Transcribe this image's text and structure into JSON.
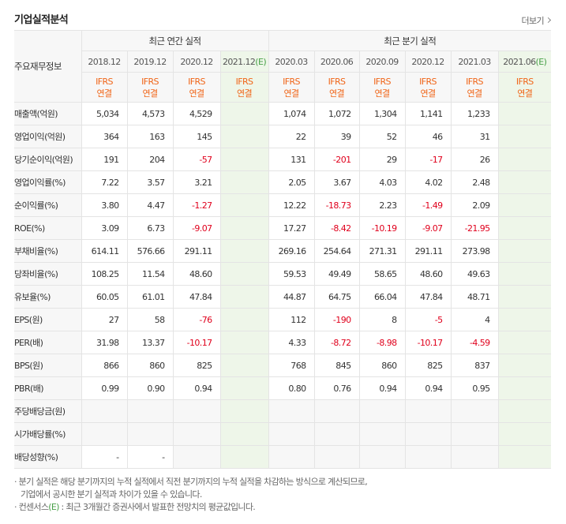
{
  "header": {
    "title": "기업실적분석",
    "more_label": "더보기"
  },
  "table": {
    "corner_label": "주요재무정보",
    "group_annual": "최근 연간 실적",
    "group_quarter": "최근 분기 실적",
    "annual_periods": [
      "2018.12",
      "2019.12",
      "2020.12",
      "2021.12"
    ],
    "quarter_periods": [
      "2020.03",
      "2020.06",
      "2020.09",
      "2020.12",
      "2021.03",
      "2021.06"
    ],
    "estimate_mark": "(E)",
    "ifrs_top": "IFRS",
    "ifrs_bottom": "연결",
    "rows": [
      {
        "label": "매출액(억원)",
        "annual": [
          "5,034",
          "4,573",
          "4,529",
          ""
        ],
        "quarter": [
          "1,074",
          "1,072",
          "1,304",
          "1,141",
          "1,233",
          ""
        ]
      },
      {
        "label": "영업이익(억원)",
        "annual": [
          "364",
          "163",
          "145",
          ""
        ],
        "quarter": [
          "22",
          "39",
          "52",
          "46",
          "31",
          ""
        ]
      },
      {
        "label": "당기순이익(억원)",
        "annual": [
          "191",
          "204",
          "-57",
          ""
        ],
        "quarter": [
          "131",
          "-201",
          "29",
          "-17",
          "26",
          ""
        ]
      },
      {
        "label": "영업이익률(%)",
        "annual": [
          "7.22",
          "3.57",
          "3.21",
          ""
        ],
        "quarter": [
          "2.05",
          "3.67",
          "4.03",
          "4.02",
          "2.48",
          ""
        ]
      },
      {
        "label": "순이익률(%)",
        "annual": [
          "3.80",
          "4.47",
          "-1.27",
          ""
        ],
        "quarter": [
          "12.22",
          "-18.73",
          "2.23",
          "-1.49",
          "2.09",
          ""
        ]
      },
      {
        "label": "ROE(%)",
        "annual": [
          "3.09",
          "6.73",
          "-9.07",
          ""
        ],
        "quarter": [
          "17.27",
          "-8.42",
          "-10.19",
          "-9.07",
          "-21.95",
          ""
        ]
      },
      {
        "label": "부채비율(%)",
        "annual": [
          "614.11",
          "576.66",
          "291.11",
          ""
        ],
        "quarter": [
          "269.16",
          "254.64",
          "271.31",
          "291.11",
          "273.98",
          ""
        ]
      },
      {
        "label": "당좌비율(%)",
        "annual": [
          "108.25",
          "11.54",
          "48.60",
          ""
        ],
        "quarter": [
          "59.53",
          "49.49",
          "58.65",
          "48.60",
          "49.63",
          ""
        ]
      },
      {
        "label": "유보율(%)",
        "annual": [
          "60.05",
          "61.01",
          "47.84",
          ""
        ],
        "quarter": [
          "44.87",
          "64.75",
          "66.04",
          "47.84",
          "48.71",
          ""
        ]
      },
      {
        "label": "EPS(원)",
        "annual": [
          "27",
          "58",
          "-76",
          ""
        ],
        "quarter": [
          "112",
          "-190",
          "8",
          "-5",
          "4",
          ""
        ]
      },
      {
        "label": "PER(배)",
        "annual": [
          "31.98",
          "13.37",
          "-10.17",
          ""
        ],
        "quarter": [
          "4.33",
          "-8.72",
          "-8.98",
          "-10.17",
          "-4.59",
          ""
        ]
      },
      {
        "label": "BPS(원)",
        "annual": [
          "866",
          "860",
          "825",
          ""
        ],
        "quarter": [
          "768",
          "845",
          "860",
          "825",
          "837",
          ""
        ]
      },
      {
        "label": "PBR(배)",
        "annual": [
          "0.99",
          "0.90",
          "0.94",
          ""
        ],
        "quarter": [
          "0.80",
          "0.76",
          "0.94",
          "0.94",
          "0.95",
          ""
        ]
      },
      {
        "label": "주당배당금(원)",
        "annual": [
          "",
          "",
          "",
          ""
        ],
        "quarter": [
          "",
          "",
          "",
          "",
          "",
          ""
        ]
      },
      {
        "label": "시가배당률(%)",
        "annual": [
          "",
          "",
          "",
          ""
        ],
        "quarter": [
          "",
          "",
          "",
          "",
          "",
          ""
        ]
      },
      {
        "label": "배당성향(%)",
        "annual": [
          "-",
          "-",
          "",
          ""
        ],
        "quarter": [
          "",
          "",
          "",
          "",
          "",
          ""
        ]
      }
    ]
  },
  "notes": {
    "line1": "분기 실적은 해당 분기까지의 누적 실적에서 직전 분기까지의 누적 실적을 차감하는 방식으로 계산되므로,",
    "line2": "기업에서 공시한 분기 실적과 차이가 있을 수 있습니다.",
    "line3_prefix": "컨센서스",
    "line3_mark": "(E)",
    "line3_suffix": ": 최근 3개월간 증권사에서 발표한 전망치의 평균값입니다."
  }
}
